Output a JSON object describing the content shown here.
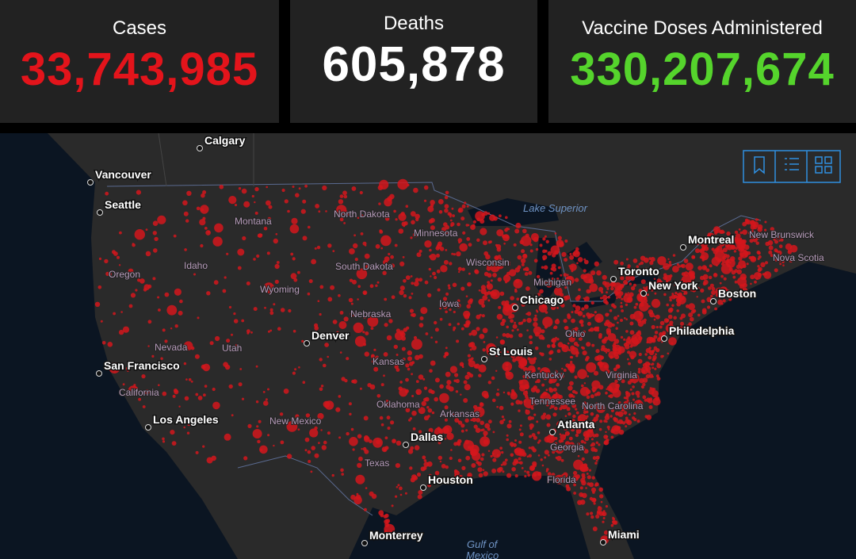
{
  "panels": [
    {
      "title": "Cases",
      "value": "33,743,985"
    },
    {
      "title": "Deaths",
      "value": "605,878"
    },
    {
      "title": "Vaccine Doses Administered",
      "value": "330,207,674"
    }
  ],
  "map": {
    "cities": [
      "Calgary",
      "Vancouver",
      "Seattle",
      "Montreal",
      "Toronto",
      "New York",
      "Boston",
      "Philadelphia",
      "Chicago",
      "St Louis",
      "Denver",
      "San Francisco",
      "Los Angeles",
      "Dallas",
      "Houston",
      "Atlanta",
      "Miami",
      "Monterrey"
    ],
    "regions": [
      "Montana",
      "North Dakota",
      "Minnesota",
      "Wisconsin",
      "South Dakota",
      "Idaho",
      "Oregon",
      "Wyoming",
      "Michigan",
      "Iowa",
      "Nebraska",
      "Nevada",
      "Utah",
      "California",
      "Kansas",
      "Ohio",
      "Kentucky",
      "Virginia",
      "Oklahoma",
      "Arkansas",
      "Tennessee",
      "North Carolina",
      "New Mexico",
      "Texas",
      "Georgia",
      "Florida",
      "New Brunswick",
      "Nova Scotia"
    ],
    "water": [
      "Lake Superior",
      "Gulf of",
      "Mexico"
    ]
  }
}
